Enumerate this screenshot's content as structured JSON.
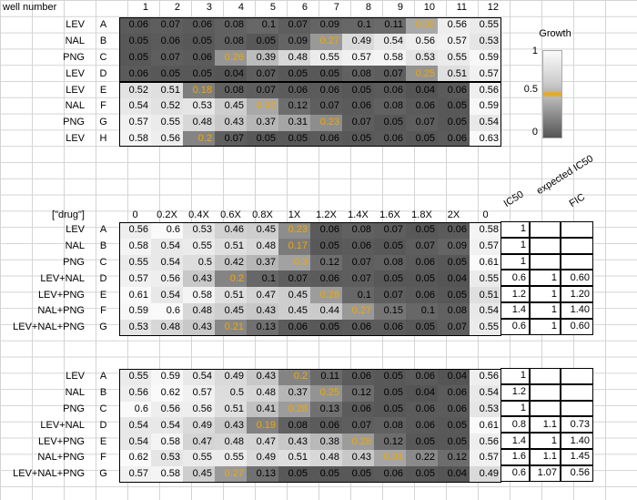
{
  "plate": {
    "header_label": "well number",
    "columns": [
      "1",
      "2",
      "3",
      "4",
      "5",
      "6",
      "7",
      "8",
      "9",
      "10",
      "11",
      "12"
    ],
    "rows": [
      {
        "drug": "LEV",
        "row": "A",
        "values": [
          "0.06",
          "0.07",
          "0.06",
          "0.08",
          "0.1",
          "0.07",
          "0.09",
          "0.1",
          "0.11",
          "0.32",
          "0.56",
          "0.55"
        ]
      },
      {
        "drug": "NAL",
        "row": "B",
        "values": [
          "0.05",
          "0.06",
          "0.05",
          "0.08",
          "0.05",
          "0.09",
          "0.27",
          "0.49",
          "0.54",
          "0.56",
          "0.57",
          "0.53"
        ]
      },
      {
        "drug": "PNG",
        "row": "C",
        "values": [
          "0.05",
          "0.07",
          "0.06",
          "0.26",
          "0.39",
          "0.48",
          "0.55",
          "0.57",
          "0.58",
          "0.53",
          "0.55",
          "0.59"
        ]
      },
      {
        "drug": "LEV",
        "row": "D",
        "values": [
          "0.06",
          "0.05",
          "0.05",
          "0.04",
          "0.07",
          "0.05",
          "0.05",
          "0.08",
          "0.07",
          "0.25",
          "0.51",
          "0.57"
        ]
      },
      {
        "drug": "LEV",
        "row": "E",
        "values": [
          "0.52",
          "0.51",
          "0.18",
          "0.08",
          "0.07",
          "0.06",
          "0.06",
          "0.05",
          "0.06",
          "0.04",
          "0.06",
          "0.56"
        ]
      },
      {
        "drug": "NAL",
        "row": "F",
        "values": [
          "0.54",
          "0.52",
          "0.53",
          "0.45",
          "0.32",
          "0.12",
          "0.07",
          "0.06",
          "0.08",
          "0.06",
          "0.05",
          "0.59"
        ]
      },
      {
        "drug": "PNG",
        "row": "G",
        "values": [
          "0.57",
          "0.55",
          "0.48",
          "0.43",
          "0.37",
          "0.31",
          "0.23",
          "0.07",
          "0.05",
          "0.07",
          "0.05",
          "0.54"
        ]
      },
      {
        "drug": "LEV",
        "row": "H",
        "values": [
          "0.58",
          "0.56",
          "0.2",
          "0.07",
          "0.05",
          "0.05",
          "0.06",
          "0.05",
          "0.06",
          "0.05",
          "0.06",
          "0.63"
        ]
      }
    ]
  },
  "legend": {
    "title": "Growth",
    "ticks": [
      "1",
      "0.5",
      "0"
    ]
  },
  "experiment1": {
    "header_label": "[\"drug\"]",
    "columns": [
      "0",
      "0.2X",
      "0.4X",
      "0.6X",
      "0.8X",
      "1X",
      "1.2X",
      "1.4X",
      "1.6X",
      "1.8X",
      "2X",
      "0"
    ],
    "side_headers": [
      "IC50",
      "expected IC50",
      "FIC"
    ],
    "rows": [
      {
        "drug": "LEV",
        "row": "A",
        "values": [
          "0.56",
          "0.6",
          "0.53",
          "0.46",
          "0.45",
          "0.23",
          "0.06",
          "0.08",
          "0.07",
          "0.05",
          "0.06",
          "0.58"
        ],
        "ic50": "1",
        "expected": "",
        "fic": ""
      },
      {
        "drug": "NAL",
        "row": "B",
        "values": [
          "0.58",
          "0.54",
          "0.55",
          "0.51",
          "0.48",
          "0.17",
          "0.05",
          "0.06",
          "0.05",
          "0.07",
          "0.09",
          "0.57"
        ],
        "ic50": "1",
        "expected": "",
        "fic": ""
      },
      {
        "drug": "PNG",
        "row": "C",
        "values": [
          "0.55",
          "0.54",
          "0.5",
          "0.42",
          "0.37",
          "0.3",
          "0.12",
          "0.07",
          "0.08",
          "0.06",
          "0.05",
          "0.61"
        ],
        "ic50": "1",
        "expected": "",
        "fic": ""
      },
      {
        "drug": "LEV+NAL",
        "row": "D",
        "values": [
          "0.57",
          "0.56",
          "0.43",
          "0.2",
          "0.1",
          "0.07",
          "0.06",
          "0.07",
          "0.05",
          "0.05",
          "0.04",
          "0.55"
        ],
        "ic50": "0.6",
        "expected": "1",
        "fic": "0.60"
      },
      {
        "drug": "LEV+PNG",
        "row": "E",
        "values": [
          "0.61",
          "0.54",
          "0.58",
          "0.51",
          "0.47",
          "0.45",
          "0.28",
          "0.1",
          "0.07",
          "0.06",
          "0.05",
          "0.51"
        ],
        "ic50": "1.2",
        "expected": "1",
        "fic": "1.20"
      },
      {
        "drug": "NAL+PNG",
        "row": "F",
        "values": [
          "0.59",
          "0.6",
          "0.48",
          "0.45",
          "0.43",
          "0.45",
          "0.44",
          "0.27",
          "0.15",
          "0.1",
          "0.08",
          "0.54"
        ],
        "ic50": "1.4",
        "expected": "1",
        "fic": "1.40"
      },
      {
        "drug": "LEV+NAL+PNG",
        "row": "G",
        "values": [
          "0.53",
          "0.48",
          "0.43",
          "0.21",
          "0.13",
          "0.06",
          "0.05",
          "0.06",
          "0.06",
          "0.05",
          "0.07",
          "0.55"
        ],
        "ic50": "0.6",
        "expected": "1",
        "fic": "0.60"
      }
    ]
  },
  "experiment2": {
    "rows": [
      {
        "drug": "LEV",
        "row": "A",
        "values": [
          "0.55",
          "0.59",
          "0.54",
          "0.49",
          "0.43",
          "0.2",
          "0.11",
          "0.06",
          "0.05",
          "0.06",
          "0.04",
          "0.56"
        ],
        "ic50": "1",
        "expected": "",
        "fic": ""
      },
      {
        "drug": "NAL",
        "row": "B",
        "values": [
          "0.56",
          "0.62",
          "0.57",
          "0.5",
          "0.48",
          "0.37",
          "0.25",
          "0.12",
          "0.05",
          "0.04",
          "0.06",
          "0.54"
        ],
        "ic50": "1.2",
        "expected": "",
        "fic": ""
      },
      {
        "drug": "PNG",
        "row": "C",
        "values": [
          "0.6",
          "0.56",
          "0.56",
          "0.51",
          "0.41",
          "0.28",
          "0.13",
          "0.06",
          "0.05",
          "0.06",
          "0.06",
          "0.53"
        ],
        "ic50": "1",
        "expected": "",
        "fic": ""
      },
      {
        "drug": "LEV+NAL",
        "row": "D",
        "values": [
          "0.54",
          "0.54",
          "0.49",
          "0.43",
          "0.19",
          "0.08",
          "0.06",
          "0.07",
          "0.08",
          "0.06",
          "0.05",
          "0.61"
        ],
        "ic50": "0.8",
        "expected": "1.1",
        "fic": "0.73"
      },
      {
        "drug": "LEV+PNG",
        "row": "E",
        "values": [
          "0.54",
          "0.58",
          "0.47",
          "0.48",
          "0.47",
          "0.43",
          "0.38",
          "0.28",
          "0.12",
          "0.05",
          "0.05",
          "0.56"
        ],
        "ic50": "1.4",
        "expected": "1",
        "fic": "1.40"
      },
      {
        "drug": "NAL+PNG",
        "row": "F",
        "values": [
          "0.62",
          "0.53",
          "0.55",
          "0.55",
          "0.49",
          "0.51",
          "0.48",
          "0.43",
          "0.31",
          "0.22",
          "0.12",
          "0.57"
        ],
        "ic50": "1.6",
        "expected": "1.1",
        "fic": "1.45"
      },
      {
        "drug": "LEV+NAL+PNG",
        "row": "G",
        "values": [
          "0.57",
          "0.58",
          "0.45",
          "0.27",
          "0.13",
          "0.05",
          "0.05",
          "0.05",
          "0.06",
          "0.05",
          "0.04",
          "0.49"
        ],
        "ic50": "0.6",
        "expected": "1.07",
        "fic": "0.56"
      }
    ]
  },
  "colors": {
    "highlight": "#f0a800",
    "low": "#555555",
    "high": "#fafafa"
  }
}
